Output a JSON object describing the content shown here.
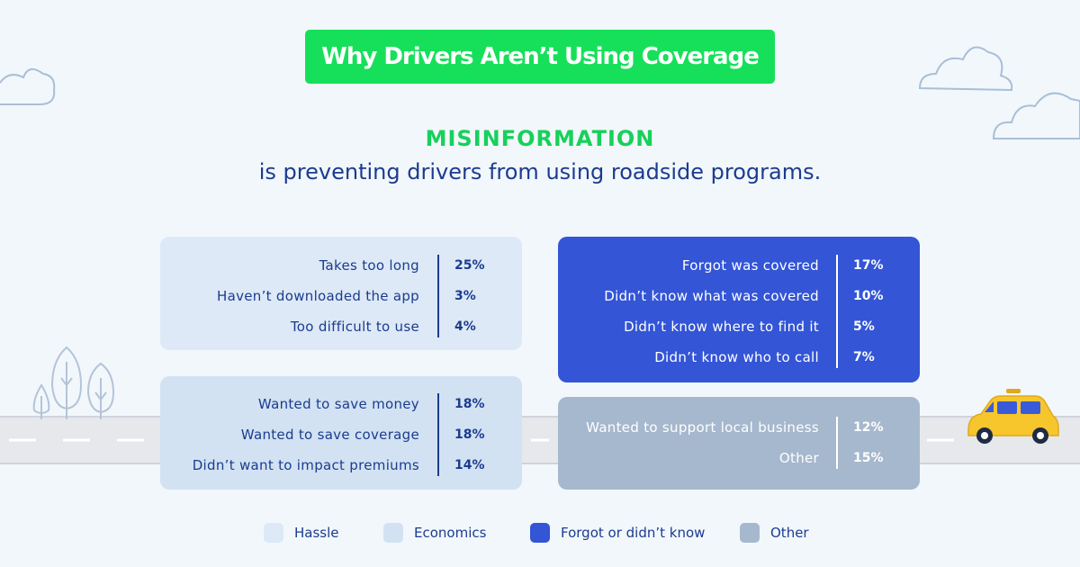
{
  "title": "Why Drivers Aren’t Using Coverage",
  "headline": "MISINFORMATION",
  "subline": "is preventing drivers from using roadside programs.",
  "colors": {
    "hassle": "#dde9f6",
    "economics": "#d2e2f2",
    "forgot": "#3355d6",
    "other": "#a6b8cd",
    "accent": "#16e05a",
    "text": "#1b3c8f"
  },
  "chart_data": {
    "type": "table",
    "unit": "%",
    "groups": [
      {
        "name": "Hassle",
        "items": [
          {
            "label": "Takes too long",
            "value": 25
          },
          {
            "label": "Haven’t downloaded the app",
            "value": 3
          },
          {
            "label": "Too difficult to use",
            "value": 4
          }
        ]
      },
      {
        "name": "Economics",
        "items": [
          {
            "label": "Wanted to save money",
            "value": 18
          },
          {
            "label": "Wanted to save coverage",
            "value": 18
          },
          {
            "label": "Didn’t want to impact premiums",
            "value": 14
          }
        ]
      },
      {
        "name": "Forgot or didn’t know",
        "items": [
          {
            "label": "Forgot was covered",
            "value": 17
          },
          {
            "label": "Didn’t know what was covered",
            "value": 10
          },
          {
            "label": "Didn’t know where to find it",
            "value": 5
          },
          {
            "label": "Didn’t know who to call",
            "value": 7
          }
        ]
      },
      {
        "name": "Other",
        "items": [
          {
            "label": "Wanted to support local business",
            "value": 12
          },
          {
            "label": "Other",
            "value": 15
          }
        ]
      }
    ],
    "legend_position": "bottom"
  }
}
